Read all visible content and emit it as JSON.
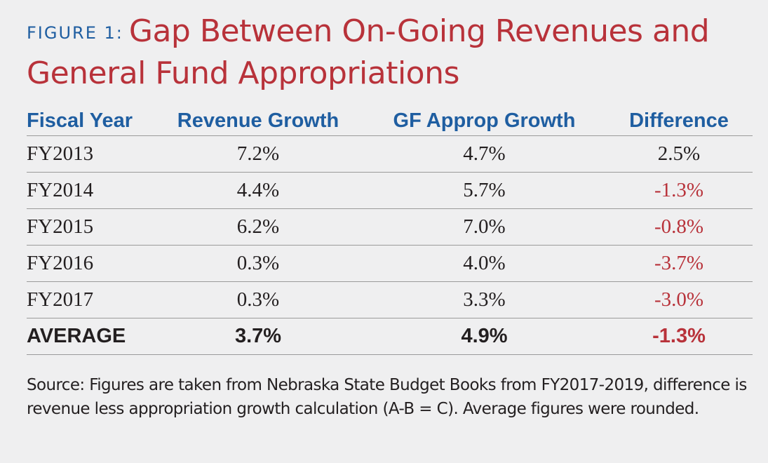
{
  "figure": {
    "label": "FIGURE 1:",
    "title_line1": "Gap Between On-Going Revenues and",
    "title_line2": "General Fund Appropriations"
  },
  "chart_data": {
    "type": "table",
    "columns": [
      "Fiscal Year",
      "Revenue Growth",
      "GF Approp Growth",
      "Difference"
    ],
    "rows": [
      [
        "FY2013",
        "7.2%",
        "4.7%",
        "2.5%"
      ],
      [
        "FY2014",
        "4.4%",
        "5.7%",
        "-1.3%"
      ],
      [
        "FY2015",
        "6.2%",
        "7.0%",
        "-0.8%"
      ],
      [
        "FY2016",
        "0.3%",
        "4.0%",
        "-3.7%"
      ],
      [
        "FY2017",
        "0.3%",
        "3.3%",
        "-3.0%"
      ]
    ],
    "summary_row": [
      "AVERAGE",
      "3.7%",
      "4.9%",
      "-1.3%"
    ]
  },
  "source_note": "Source: Figures are taken from Nebraska State Budget Books from FY2017-2019, difference is revenue less appropriation growth calculation (A-B = C). Average figures were rounded.",
  "colors": {
    "accent_blue": "#1f5ea1",
    "accent_red": "#b8323a",
    "background": "#efeff0"
  }
}
